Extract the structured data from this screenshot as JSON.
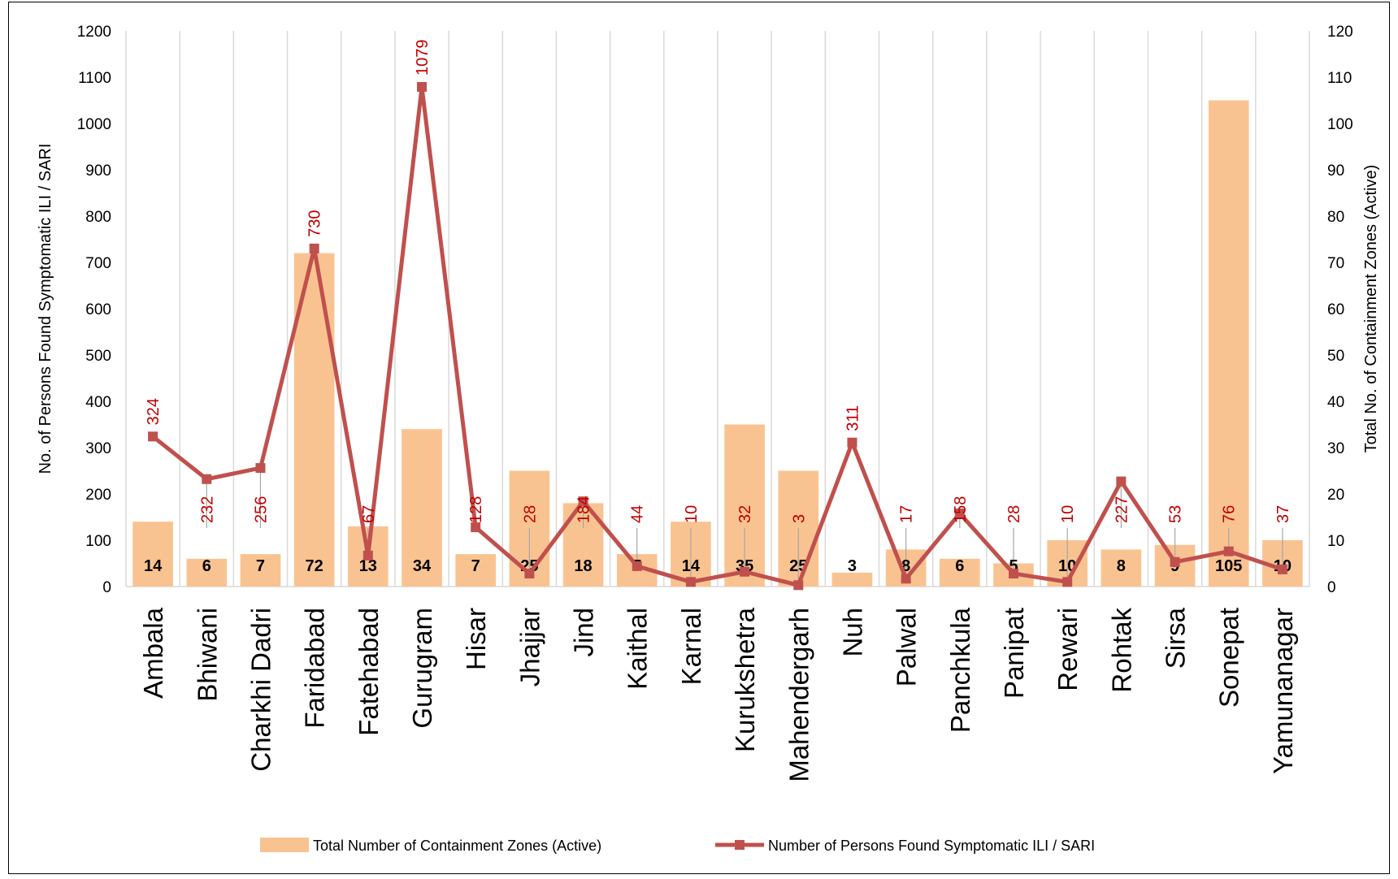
{
  "chart_data": {
    "type": "bar+line",
    "categories": [
      "Ambala",
      "Bhiwani",
      "Charkhi Dadri",
      "Faridabad",
      "Fatehabad",
      "Gurugram",
      "Hisar",
      "Jhajjar",
      "Jind",
      "Kaithal",
      "Karnal",
      "Kurukshetra",
      "Mahendergarh",
      "Nuh",
      "Palwal",
      "Panchkula",
      "Panipat",
      "Rewari",
      "Rohtak",
      "Sirsa",
      "Sonepat",
      "Yamunanagar"
    ],
    "series": [
      {
        "name": "Total Number of Containment Zones (Active)",
        "type": "bar",
        "axis": "right",
        "color": "#f9c391",
        "values": [
          14,
          6,
          7,
          72,
          13,
          34,
          7,
          25,
          18,
          7,
          14,
          35,
          25,
          3,
          8,
          6,
          5,
          10,
          8,
          9,
          105,
          10
        ]
      },
      {
        "name": "Number of Persons Found Symptomatic ILI / SARI",
        "type": "line",
        "axis": "left",
        "color": "#c0504d",
        "label_color": "#c00000",
        "values": [
          324,
          232,
          256,
          730,
          67,
          1079,
          128,
          28,
          184,
          44,
          10,
          32,
          3,
          311,
          17,
          158,
          28,
          10,
          227,
          53,
          76,
          37
        ]
      }
    ],
    "ylabel_left": "No. of Persons Found Symptomatic ILI / SARI",
    "ylabel_right": "Total No. of Containment Zones (Active)",
    "ylim_left": [
      0,
      1200
    ],
    "ylim_right": [
      0,
      120
    ],
    "yticks_left": [
      0,
      100,
      200,
      300,
      400,
      500,
      600,
      700,
      800,
      900,
      1000,
      1100,
      1200
    ],
    "yticks_right": [
      0,
      10,
      20,
      30,
      40,
      50,
      60,
      70,
      80,
      90,
      100,
      110,
      120
    ],
    "grid": "vertical",
    "legend": "bottom"
  }
}
